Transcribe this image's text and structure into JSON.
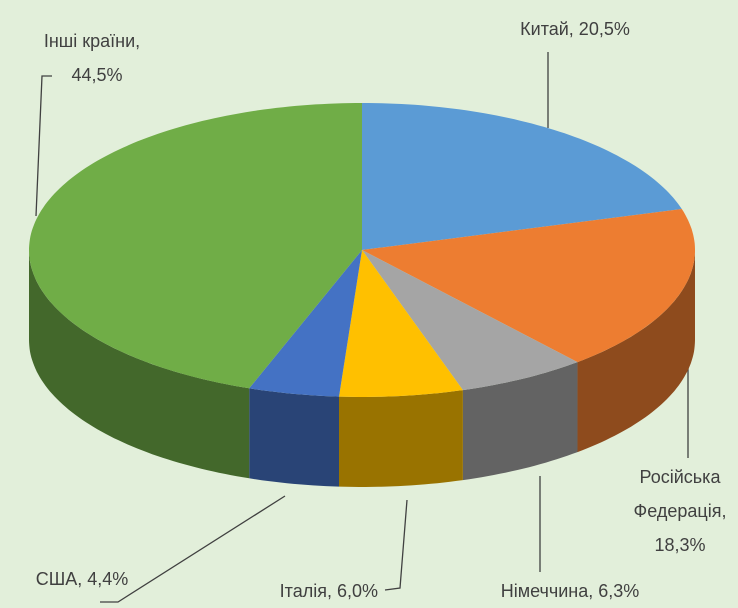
{
  "chart_data": {
    "type": "pie3d",
    "values": [
      20.5,
      18.3,
      6.3,
      6.0,
      4.4,
      44.5
    ],
    "value_labels": [
      [
        "Китай, 20,5%"
      ],
      [
        "Російська",
        "Федерація,",
        "18,3%"
      ],
      [
        "Німеччина, 6,3%"
      ],
      [
        "Італія, 6,0%"
      ],
      [
        "США, 4,4%"
      ],
      [
        "Інші країни,",
        "44,5%"
      ]
    ],
    "colors": [
      "#5b9bd5",
      "#ed7d31",
      "#a5a5a5",
      "#ffc000",
      "#4472c4",
      "#70ad47"
    ]
  }
}
